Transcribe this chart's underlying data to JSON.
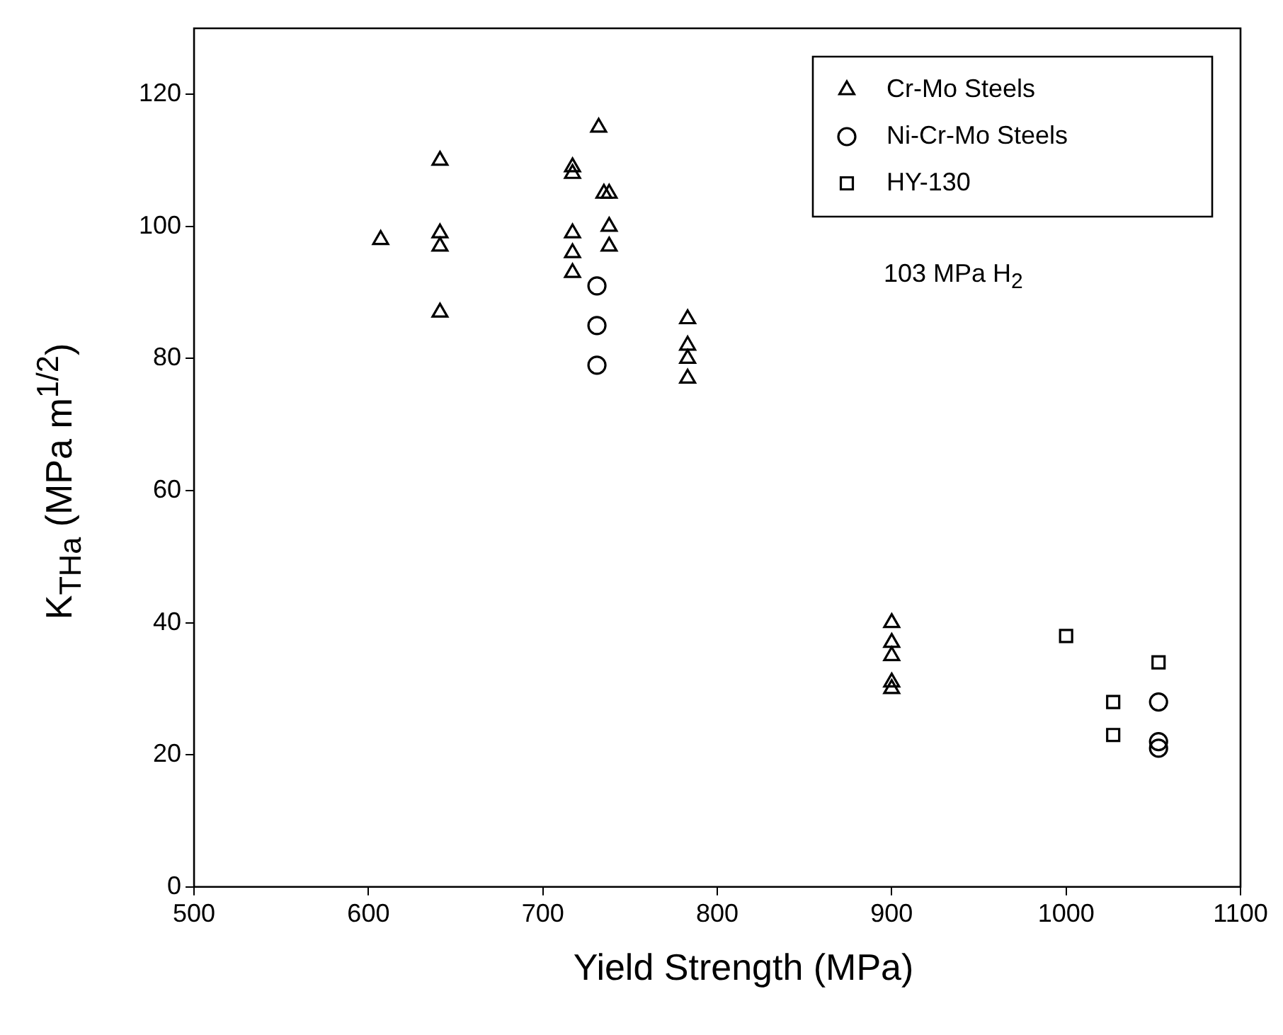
{
  "chart_data": {
    "type": "scatter",
    "xlabel": "Yield Strength (MPa)",
    "ylabel": "K$_{THa}$ (MPa m$^{1/2}$)",
    "xlim": [
      500,
      1100
    ],
    "xticks": [
      500,
      600,
      700,
      800,
      900,
      1000,
      1100
    ],
    "ylim": [
      0,
      130
    ],
    "yticks": [
      0,
      20,
      40,
      60,
      80,
      100,
      120
    ],
    "grid": false,
    "legend": "top right",
    "annotations": [
      "103 MPa H$_{2}$"
    ],
    "series": [
      {
        "name": "Cr-Mo Steels",
        "color": "#000000",
        "marker": "triangle",
        "x": [
          607,
          641,
          641,
          641,
          641,
          717,
          717,
          717,
          717,
          717,
          732,
          735,
          738,
          738,
          738,
          783,
          783,
          783,
          783,
          900,
          900,
          900,
          900,
          900
        ],
        "values": [
          98,
          110,
          99,
          97,
          87,
          109,
          108,
          99,
          96,
          93,
          115,
          105,
          105,
          100,
          97,
          86,
          82,
          80,
          77,
          40,
          37,
          35,
          31,
          30
        ]
      },
      {
        "name": "Ni-Cr-Mo Steels",
        "color": "#000000",
        "marker": "circle",
        "x": [
          731,
          731,
          731,
          1053,
          1053,
          1053
        ],
        "values": [
          91,
          85,
          79,
          28,
          22,
          21
        ]
      },
      {
        "name": "HY-130",
        "color": "#000000",
        "marker": "square",
        "x": [
          1000,
          1027,
          1027,
          1053
        ],
        "values": [
          38,
          28,
          23,
          34
        ]
      }
    ]
  }
}
